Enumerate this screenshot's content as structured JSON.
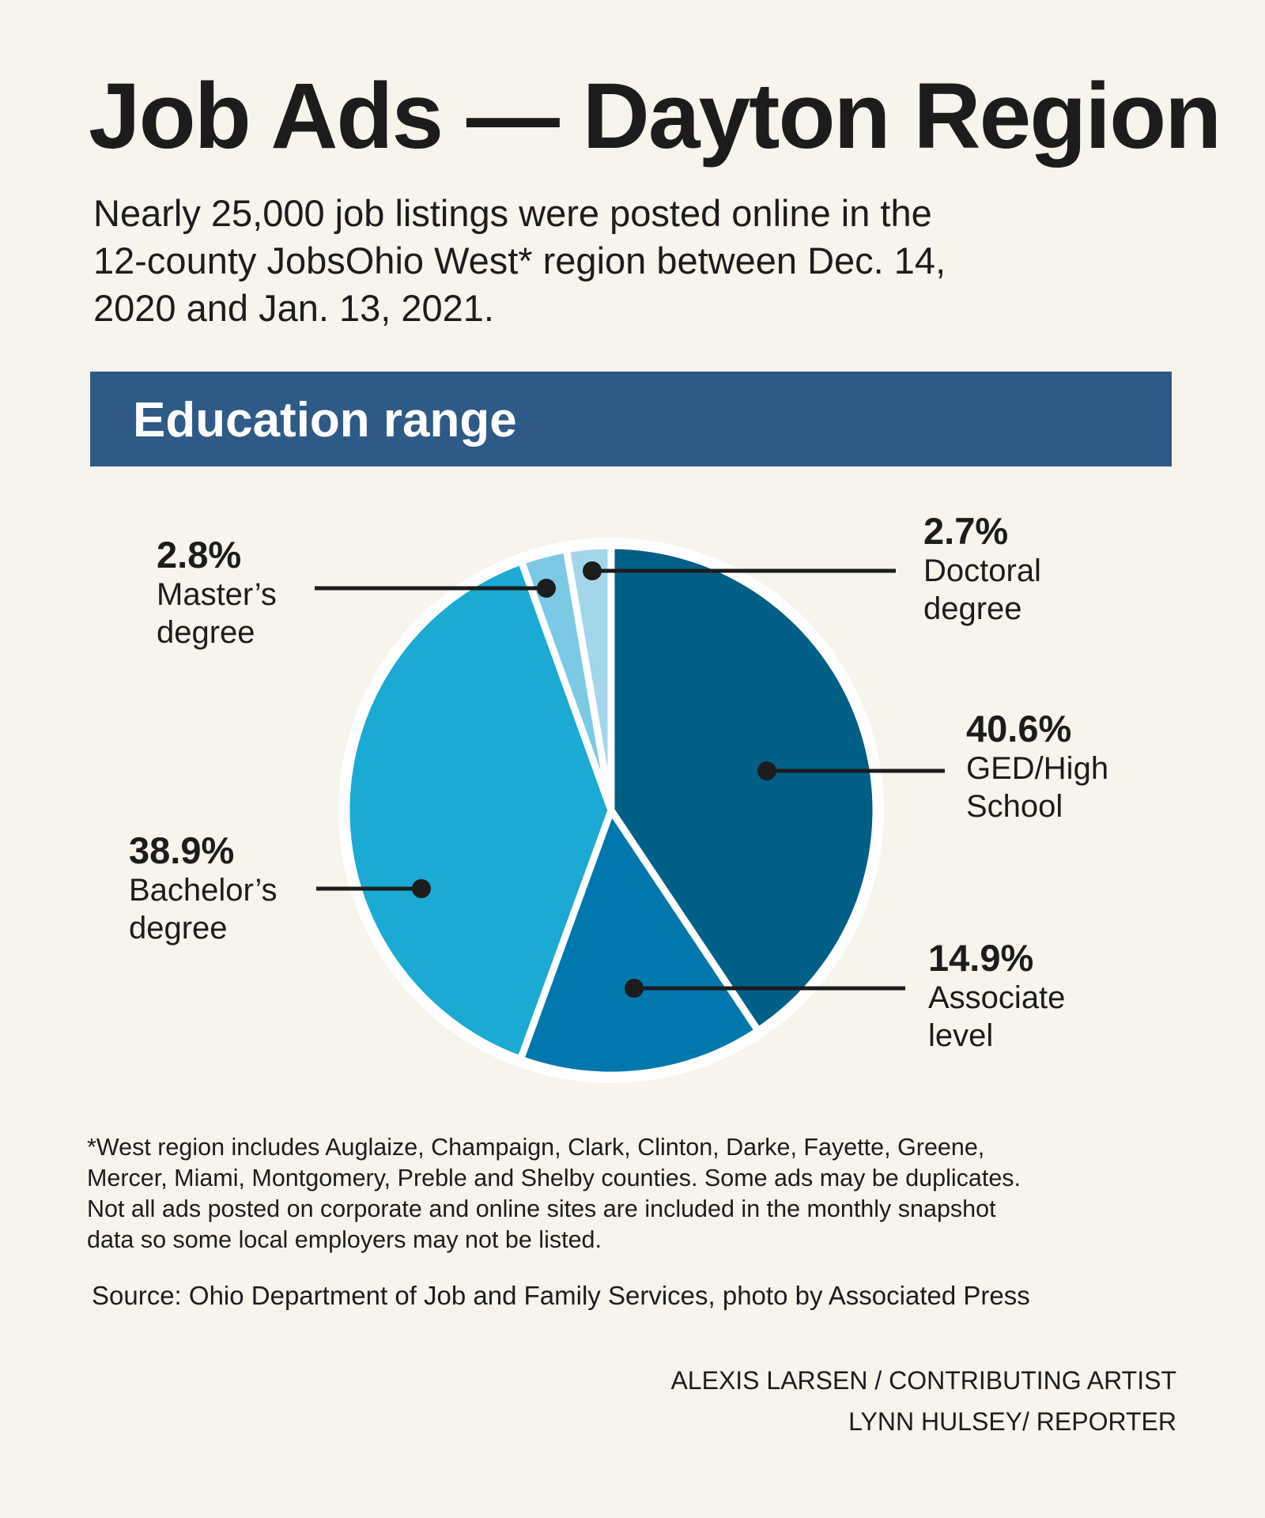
{
  "header": {
    "title": "Job Ads — Dayton Region",
    "subtitle_lines": [
      "Nearly 25,000 job listings were posted online in the",
      "12-county JobsOhio West* region between Dec. 14,",
      "2020 and Jan. 13, 2021."
    ]
  },
  "banner": {
    "label": "Education range"
  },
  "chart_data": {
    "type": "pie",
    "title": "Education range",
    "unit": "%",
    "slices": [
      {
        "label_lines": [
          "GED/High",
          "School"
        ],
        "value": 40.6,
        "value_label": "40.6%",
        "color": "#005f87"
      },
      {
        "label_lines": [
          "Associate",
          "level"
        ],
        "value": 14.9,
        "value_label": "14.9%",
        "color": "#0078ae"
      },
      {
        "label_lines": [
          "Bachelor’s",
          "degree"
        ],
        "value": 38.9,
        "value_label": "38.9%",
        "color": "#1aaad4"
      },
      {
        "label_lines": [
          "Master’s",
          "degree"
        ],
        "value": 2.8,
        "value_label": "2.8%",
        "color": "#7cc9e6"
      },
      {
        "label_lines": [
          "Doctoral",
          "degree"
        ],
        "value": 2.7,
        "value_label": "2.7%",
        "color": "#a3d6ec"
      }
    ],
    "start": "12 o'clock",
    "direction": "clockwise",
    "slice_border_color": "#ffffff",
    "leader_line_color": "#1c1c1c"
  },
  "footnote_lines": [
    "*West region includes Auglaize, Champaign, Clark, Clinton, Darke, Fayette, Greene,",
    "Mercer, Miami, Montgomery, Preble and Shelby counties. Some ads may be duplicates.",
    "Not all ads posted on corporate and online sites are included in the monthly snapshot",
    "data so some local employers may not be listed."
  ],
  "source": "Source: Ohio Department of Job and Family Services, photo by Associated Press",
  "credits": [
    "ALEXIS LARSEN / CONTRIBUTING ARTIST",
    "LYNN HULSEY/ REPORTER"
  ],
  "colors": {
    "background": "#f7f4ec",
    "banner": "#2d5a87",
    "text": "#1c1c1c"
  }
}
